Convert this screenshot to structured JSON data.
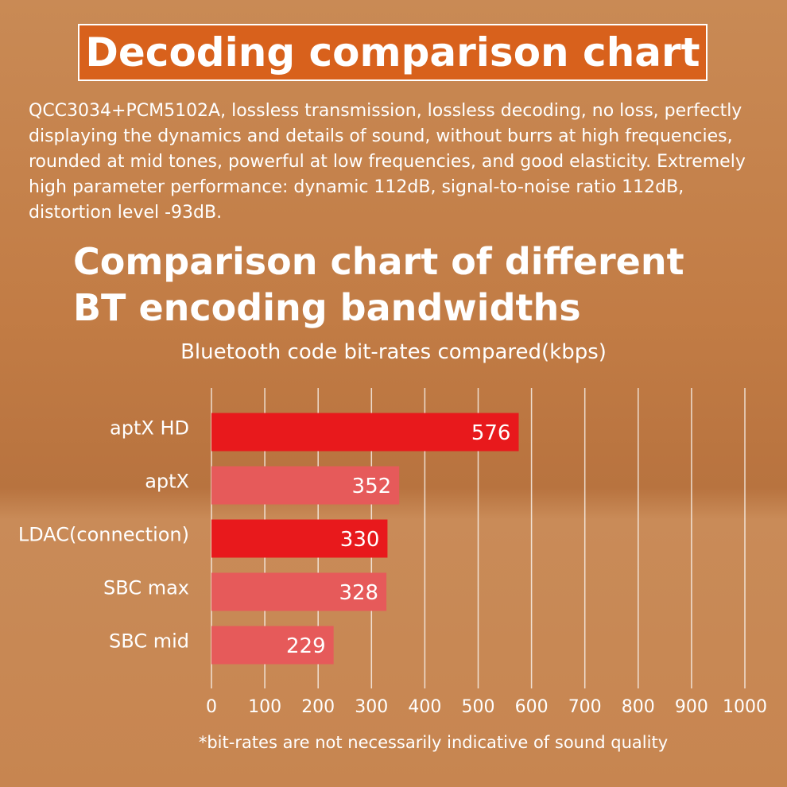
{
  "header": {
    "title": "Decoding comparison chart",
    "description": "QCC3034+PCM5102A, lossless transmission, lossless decoding, no loss, perfectly displaying the dynamics and details of sound, without burrs at high frequencies, rounded at mid tones, powerful at low frequencies, and good elasticity. Extremely high parameter performance: dynamic 112dB, signal-to-noise ratio 112dB, distortion level -93dB."
  },
  "chart_data": {
    "type": "hbar",
    "title": "Comparison chart of different BT encoding bandwidths",
    "subtitle": "Bluetooth code bit-rates compared(kbps)",
    "note": "*bit-rates are not necessarily indicative of sound quality",
    "categories": [
      "aptX HD",
      "aptX",
      "LDAC(connection)",
      "SBC max",
      "SBC mid"
    ],
    "values": [
      576,
      352,
      330,
      328,
      229
    ],
    "colors": [
      "#e8191c",
      "#e65a5a",
      "#e8191c",
      "#e65a5a",
      "#e65a5a"
    ],
    "xlim": [
      0,
      1000
    ],
    "xticks": [
      0,
      100,
      200,
      300,
      400,
      500,
      600,
      700,
      800,
      900,
      1000
    ],
    "grid": true
  }
}
